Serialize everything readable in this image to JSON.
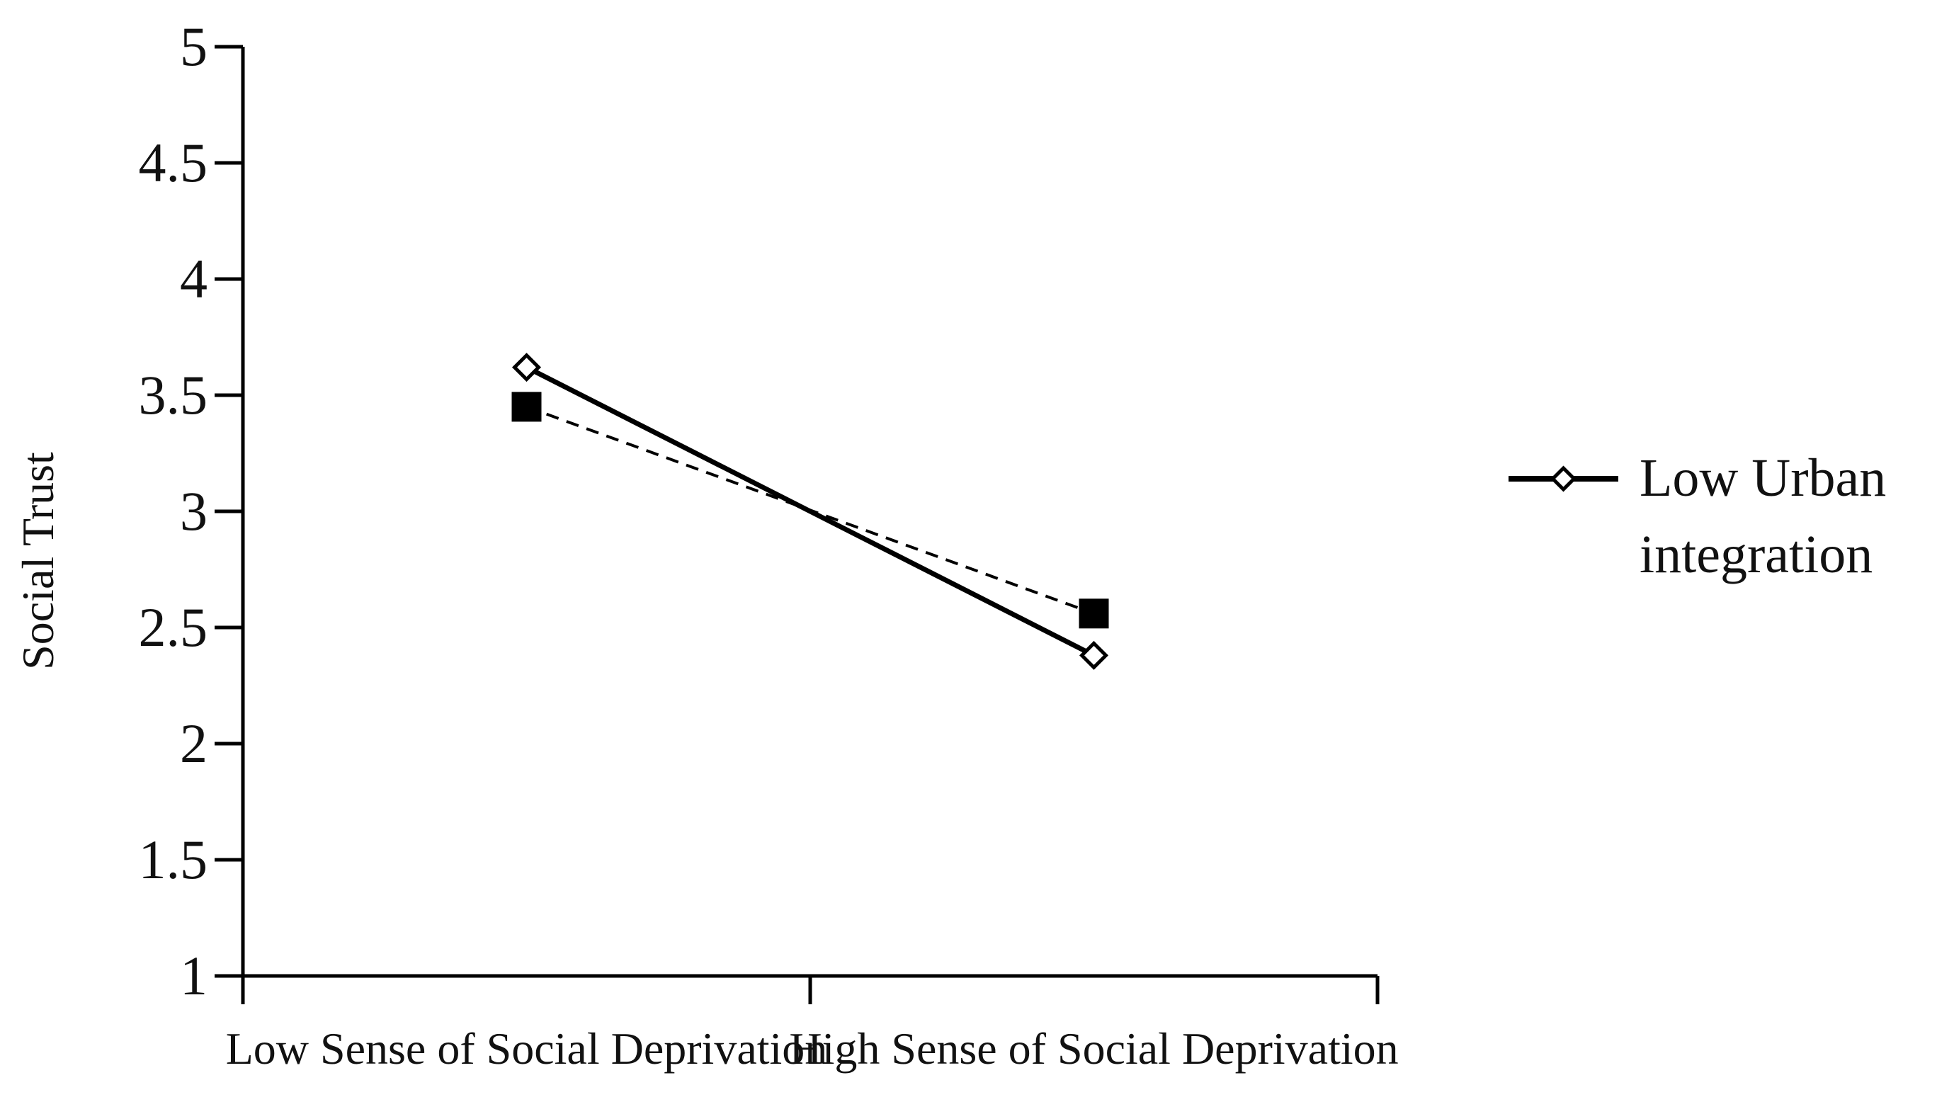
{
  "chart_data": {
    "type": "line",
    "title": "",
    "xlabel": "",
    "ylabel": "Social Trust",
    "categories": [
      "Low Sense of Social Deprivation",
      "High Sense of Social Deprivation"
    ],
    "ylim": [
      1,
      5
    ],
    "yticks": [
      "1",
      "1.5",
      "2",
      "2.5",
      "3",
      "3.5",
      "4",
      "4.5",
      "5"
    ],
    "grid": false,
    "legend_position": "right",
    "series": [
      {
        "name": "Low Urban integration",
        "legend_lines": [
          "Low Urban",
          "integration"
        ],
        "values": [
          3.62,
          2.38
        ],
        "line_style": "solid",
        "marker": "open-diamond",
        "color": "#000000"
      },
      {
        "values": [
          3.45,
          2.56
        ],
        "line_style": "dashed",
        "marker": "filled-square",
        "color": "#000000"
      }
    ]
  }
}
